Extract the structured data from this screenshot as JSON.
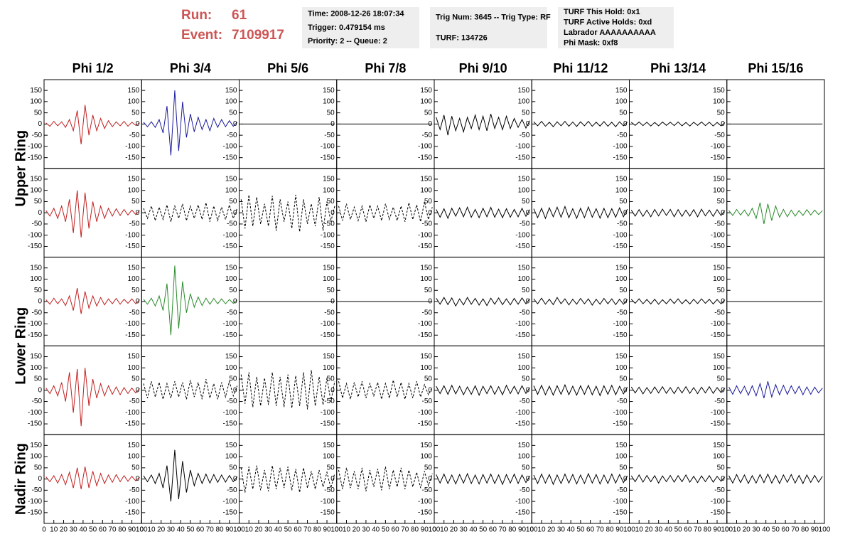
{
  "header": {
    "run_label": "Run:",
    "run": 61,
    "event_label": "Event:",
    "event": 7109917
  },
  "info": [
    [
      "Time: 2008-12-26 18:07:34",
      "Trigger: 0.479154 ms",
      "Priority: 2 -- Queue: 2"
    ],
    [
      "Trig Num: 3645 -- Trig Type: RF",
      "TURF: 134726"
    ],
    [
      "TURF This Hold: 0x1",
      "TURF Active Holds: 0xd",
      "Labrador AAAAAAAAAA",
      "Phi Mask: 0xf8"
    ]
  ],
  "columns": [
    "Phi 1/2",
    "Phi 3/4",
    "Phi 5/6",
    "Phi 7/8",
    "Phi 9/10",
    "Phi 11/12",
    "Phi 13/14",
    "Phi 15/16"
  ],
  "row_labels": [
    "Upper Ring",
    "Lower Ring",
    "Nadir Ring"
  ],
  "xlim": [
    0,
    100
  ],
  "xticks": [
    0,
    10,
    20,
    30,
    40,
    50,
    60,
    70,
    80,
    90,
    100
  ],
  "ylim": [
    -198,
    198
  ],
  "yticks": [
    -150,
    -100,
    -50,
    0,
    50,
    100,
    150
  ],
  "x": [
    2,
    6,
    10,
    14,
    18,
    22,
    26,
    30,
    34,
    38,
    42,
    46,
    50,
    54,
    58,
    62,
    66,
    70,
    74,
    78,
    82,
    86,
    90,
    94,
    98
  ],
  "panels": [
    [
      {
        "color": "#c02020",
        "dashed": false,
        "values": [
          5,
          -10,
          12,
          -8,
          10,
          -15,
          20,
          -30,
          60,
          -90,
          85,
          -50,
          40,
          -30,
          25,
          -20,
          15,
          -12,
          10,
          -8,
          12,
          -10,
          8,
          -6,
          5
        ]
      },
      {
        "color": "#1a1a9a",
        "dashed": false,
        "values": [
          8,
          -12,
          10,
          -15,
          20,
          -40,
          80,
          -140,
          150,
          -120,
          100,
          -60,
          45,
          -35,
          30,
          -25,
          20,
          -30,
          25,
          -15,
          20,
          -12,
          15,
          -10,
          8
        ]
      },
      {
        "color": "#000000",
        "dashed": false,
        "values": [
          0,
          0,
          0,
          0,
          0,
          0,
          0,
          0,
          0,
          0,
          0,
          0,
          0,
          0,
          0,
          0,
          0,
          0,
          0,
          0,
          0,
          0,
          0,
          0,
          0
        ]
      },
      {
        "color": "#000000",
        "dashed": false,
        "values": [
          0,
          0,
          0,
          0,
          0,
          0,
          0,
          0,
          0,
          0,
          0,
          0,
          0,
          0,
          0,
          0,
          0,
          0,
          0,
          0,
          0,
          0,
          0,
          0,
          0
        ]
      },
      {
        "color": "#000000",
        "dashed": false,
        "values": [
          30,
          -25,
          40,
          -50,
          35,
          -30,
          25,
          -35,
          30,
          -20,
          40,
          -25,
          35,
          -30,
          45,
          -20,
          30,
          -25,
          35,
          -20,
          25,
          -15,
          20,
          -18,
          15
        ]
      },
      {
        "color": "#000000",
        "dashed": false,
        "values": [
          10,
          -8,
          12,
          -10,
          8,
          -12,
          10,
          -8,
          12,
          -10,
          9,
          -11,
          10,
          -8,
          12,
          -10,
          8,
          -9,
          11,
          -10,
          8,
          -12,
          10,
          -8,
          9
        ]
      },
      {
        "color": "#000000",
        "dashed": false,
        "values": [
          8,
          -6,
          9,
          -7,
          8,
          -9,
          7,
          -8,
          9,
          -6,
          8,
          -7,
          9,
          -8,
          7,
          -9,
          8,
          -6,
          9,
          -7,
          8,
          -9,
          7,
          -8,
          6
        ]
      },
      {
        "color": "#000000",
        "dashed": false,
        "values": [
          0,
          0,
          0,
          0,
          0,
          0,
          0,
          0,
          0,
          0,
          0,
          0,
          0,
          0,
          0,
          0,
          0,
          0,
          0,
          0,
          0,
          0,
          0,
          0,
          0
        ]
      }
    ],
    [
      {
        "color": "#c02020",
        "dashed": false,
        "values": [
          10,
          -15,
          20,
          -25,
          30,
          -40,
          60,
          -90,
          100,
          -110,
          90,
          -70,
          50,
          -40,
          30,
          -25,
          20,
          -15,
          18,
          -12,
          15,
          -10,
          12,
          -8,
          10
        ]
      },
      {
        "color": "#000000",
        "dashed": true,
        "values": [
          20,
          -25,
          30,
          -35,
          25,
          -30,
          35,
          -40,
          30,
          -25,
          40,
          -35,
          30,
          -25,
          35,
          -30,
          45,
          -40,
          30,
          -35,
          25,
          -30,
          35,
          -25,
          20
        ]
      },
      {
        "color": "#000000",
        "dashed": true,
        "values": [
          60,
          -70,
          80,
          -60,
          70,
          -50,
          40,
          -60,
          75,
          -80,
          60,
          -40,
          50,
          -70,
          80,
          -85,
          60,
          -50,
          40,
          -60,
          70,
          -80,
          50,
          -40,
          30
        ]
      },
      {
        "color": "#000000",
        "dashed": true,
        "values": [
          30,
          -35,
          40,
          -30,
          25,
          -35,
          30,
          -40,
          35,
          -25,
          30,
          -35,
          40,
          -30,
          25,
          -35,
          30,
          -40,
          45,
          -30,
          35,
          -40,
          50,
          -30,
          25
        ]
      },
      {
        "color": "#000000",
        "dashed": false,
        "values": [
          15,
          -20,
          18,
          -25,
          20,
          -15,
          22,
          -18,
          25,
          -20,
          15,
          -22,
          20,
          -18,
          24,
          -20,
          16,
          -22,
          18,
          -20,
          15,
          -18,
          20,
          -16,
          14
        ]
      },
      {
        "color": "#000000",
        "dashed": false,
        "values": [
          18,
          -22,
          20,
          -25,
          22,
          -18,
          25,
          -20,
          28,
          -22,
          18,
          -25,
          20,
          -22,
          26,
          -20,
          18,
          -24,
          20,
          -22,
          18,
          -20,
          22,
          -18,
          16
        ]
      },
      {
        "color": "#000000",
        "dashed": false,
        "values": [
          12,
          -15,
          14,
          -16,
          12,
          -18,
          15,
          -14,
          16,
          -12,
          15,
          -18,
          14,
          -16,
          12,
          -15,
          14,
          -18,
          16,
          -14,
          12,
          -16,
          14,
          -12,
          10
        ]
      },
      {
        "color": "#2a8a2a",
        "dashed": false,
        "values": [
          10,
          -12,
          15,
          -10,
          12,
          -15,
          20,
          -25,
          45,
          -50,
          40,
          -35,
          30,
          -20,
          15,
          -18,
          12,
          -15,
          10,
          -12,
          14,
          -10,
          12,
          -8,
          10
        ]
      }
    ],
    [
      {
        "color": "#c02020",
        "dashed": false,
        "values": [
          8,
          -12,
          15,
          -10,
          12,
          -18,
          25,
          -40,
          60,
          -55,
          45,
          -30,
          25,
          -20,
          18,
          -15,
          12,
          -10,
          14,
          -12,
          10,
          -8,
          12,
          -10,
          8
        ]
      },
      {
        "color": "#2a8a2a",
        "dashed": false,
        "values": [
          10,
          -12,
          15,
          -20,
          25,
          -40,
          80,
          -150,
          160,
          -120,
          90,
          -50,
          35,
          -25,
          20,
          -18,
          15,
          -12,
          14,
          -10,
          12,
          -10,
          9,
          -8,
          7
        ]
      },
      {
        "color": "#000000",
        "dashed": false,
        "values": [
          0,
          0,
          0,
          0,
          0,
          0,
          0,
          0,
          0,
          0,
          0,
          0,
          0,
          0,
          0,
          0,
          0,
          0,
          0,
          0,
          0,
          0,
          0,
          0,
          0
        ]
      },
      {
        "color": "#000000",
        "dashed": false,
        "values": [
          0,
          0,
          0,
          0,
          0,
          0,
          0,
          0,
          0,
          0,
          0,
          0,
          0,
          0,
          0,
          0,
          0,
          0,
          0,
          0,
          0,
          0,
          0,
          0,
          0
        ]
      },
      {
        "color": "#000000",
        "dashed": false,
        "values": [
          15,
          -12,
          18,
          -14,
          16,
          -20,
          12,
          -15,
          18,
          -12,
          14,
          -16,
          12,
          -18,
          15,
          -12,
          16,
          -14,
          12,
          -15,
          14,
          -12,
          16,
          -10,
          12
        ]
      },
      {
        "color": "#000000",
        "dashed": false,
        "values": [
          12,
          -10,
          15,
          -12,
          10,
          -14,
          18,
          -10,
          12,
          -15,
          10,
          -12,
          14,
          -10,
          12,
          -16,
          10,
          -12,
          14,
          -10,
          12,
          -14,
          10,
          -12,
          9
        ]
      },
      {
        "color": "#000000",
        "dashed": false,
        "values": [
          10,
          -8,
          12,
          -10,
          9,
          -11,
          10,
          -12,
          8,
          -10,
          11,
          -9,
          12,
          -10,
          8,
          -11,
          10,
          -9,
          12,
          -8,
          10,
          -11,
          9,
          -10,
          8
        ]
      },
      {
        "color": "#000000",
        "dashed": false,
        "values": [
          0,
          0,
          0,
          0,
          0,
          0,
          0,
          0,
          0,
          0,
          0,
          0,
          0,
          0,
          0,
          0,
          0,
          0,
          0,
          0,
          0,
          0,
          0,
          0,
          0
        ]
      }
    ],
    [
      {
        "color": "#c02020",
        "dashed": false,
        "values": [
          10,
          -15,
          20,
          -25,
          35,
          -50,
          80,
          -100,
          95,
          -160,
          100,
          -70,
          50,
          -35,
          30,
          -25,
          20,
          -18,
          15,
          -20,
          12,
          -15,
          10,
          -12,
          8
        ]
      },
      {
        "color": "#000000",
        "dashed": true,
        "values": [
          30,
          -35,
          40,
          -30,
          35,
          -40,
          30,
          -35,
          40,
          -30,
          35,
          -40,
          45,
          -30,
          35,
          -40,
          50,
          -35,
          30,
          -40,
          35,
          -30,
          40,
          -25,
          20
        ]
      },
      {
        "color": "#000000",
        "dashed": true,
        "values": [
          70,
          -60,
          80,
          -75,
          60,
          -70,
          55,
          -65,
          80,
          -70,
          60,
          -75,
          70,
          -80,
          65,
          -70,
          80,
          -85,
          90,
          -70,
          60,
          -65,
          55,
          -50,
          40
        ]
      },
      {
        "color": "#000000",
        "dashed": true,
        "values": [
          40,
          -35,
          30,
          -40,
          35,
          -30,
          40,
          -35,
          30,
          -25,
          35,
          -40,
          30,
          -35,
          45,
          -30,
          35,
          -40,
          30,
          -35,
          40,
          -30,
          25,
          -20,
          15
        ]
      },
      {
        "color": "#000000",
        "dashed": false,
        "values": [
          18,
          -15,
          20,
          -18,
          22,
          -16,
          18,
          -20,
          15,
          -18,
          20,
          -22,
          18,
          -15,
          20,
          -18,
          16,
          -20,
          22,
          -15,
          18,
          -16,
          20,
          -14,
          12
        ]
      },
      {
        "color": "#000000",
        "dashed": false,
        "values": [
          20,
          -18,
          22,
          -20,
          18,
          -22,
          20,
          -18,
          24,
          -20,
          18,
          -22,
          20,
          -18,
          22,
          -20,
          18,
          -24,
          20,
          -18,
          22,
          -20,
          18,
          -16,
          14
        ]
      },
      {
        "color": "#000000",
        "dashed": false,
        "values": [
          15,
          -12,
          14,
          -16,
          12,
          -14,
          15,
          -12,
          16,
          -14,
          12,
          -15,
          14,
          -12,
          16,
          -14,
          12,
          -15,
          14,
          -12,
          16,
          -14,
          12,
          -10,
          10
        ]
      },
      {
        "color": "#1a1a9a",
        "dashed": false,
        "values": [
          15,
          -18,
          20,
          -15,
          18,
          -22,
          20,
          -25,
          30,
          -35,
          40,
          -30,
          25,
          -20,
          22,
          -18,
          20,
          -15,
          18,
          -20,
          15,
          -18,
          14,
          -12,
          10
        ]
      }
    ],
    [
      {
        "color": "#c02020",
        "dashed": false,
        "values": [
          10,
          -12,
          15,
          -18,
          20,
          -25,
          30,
          -40,
          50,
          -45,
          55,
          -40,
          35,
          -30,
          25,
          -20,
          18,
          -15,
          20,
          -12,
          15,
          -10,
          12,
          -8,
          8
        ]
      },
      {
        "color": "#000000",
        "dashed": false,
        "values": [
          15,
          -12,
          18,
          -20,
          25,
          -40,
          60,
          -100,
          130,
          -90,
          80,
          -60,
          40,
          -30,
          25,
          -20,
          22,
          -18,
          20,
          -15,
          18,
          -14,
          16,
          -12,
          10
        ]
      },
      {
        "color": "#000000",
        "dashed": true,
        "values": [
          50,
          -60,
          55,
          -45,
          60,
          -50,
          40,
          -55,
          60,
          -45,
          50,
          -40,
          55,
          -50,
          45,
          -60,
          50,
          -40,
          35,
          -45,
          40,
          -35,
          30,
          -40,
          25
        ]
      },
      {
        "color": "#000000",
        "dashed": true,
        "values": [
          40,
          -45,
          50,
          -40,
          35,
          -45,
          50,
          -55,
          40,
          -35,
          45,
          -50,
          55,
          -45,
          40,
          -35,
          50,
          -45,
          40,
          -35,
          30,
          -40,
          35,
          -30,
          25
        ]
      },
      {
        "color": "#000000",
        "dashed": false,
        "values": [
          20,
          -18,
          22,
          -20,
          18,
          -22,
          20,
          -18,
          24,
          -20,
          18,
          -22,
          20,
          -18,
          22,
          -20,
          18,
          -24,
          20,
          -18,
          22,
          -20,
          18,
          -16,
          14
        ]
      },
      {
        "color": "#000000",
        "dashed": false,
        "values": [
          18,
          -20,
          22,
          -18,
          20,
          -24,
          18,
          -20,
          22,
          -18,
          20,
          -22,
          18,
          -20,
          24,
          -18,
          20,
          -22,
          18,
          -20,
          22,
          -18,
          20,
          -16,
          14
        ]
      },
      {
        "color": "#000000",
        "dashed": false,
        "values": [
          15,
          -12,
          18,
          -14,
          16,
          -12,
          15,
          -18,
          14,
          -12,
          16,
          -14,
          15,
          -12,
          18,
          -14,
          12,
          -16,
          14,
          -12,
          15,
          -14,
          12,
          -10,
          10
        ]
      },
      {
        "color": "#000000",
        "dashed": false,
        "values": [
          15,
          -18,
          20,
          -16,
          18,
          -20,
          15,
          -18,
          20,
          -16,
          22,
          -18,
          16,
          -20,
          18,
          -15,
          20,
          -18,
          16,
          -20,
          18,
          -15,
          16,
          -14,
          12
        ]
      }
    ]
  ]
}
